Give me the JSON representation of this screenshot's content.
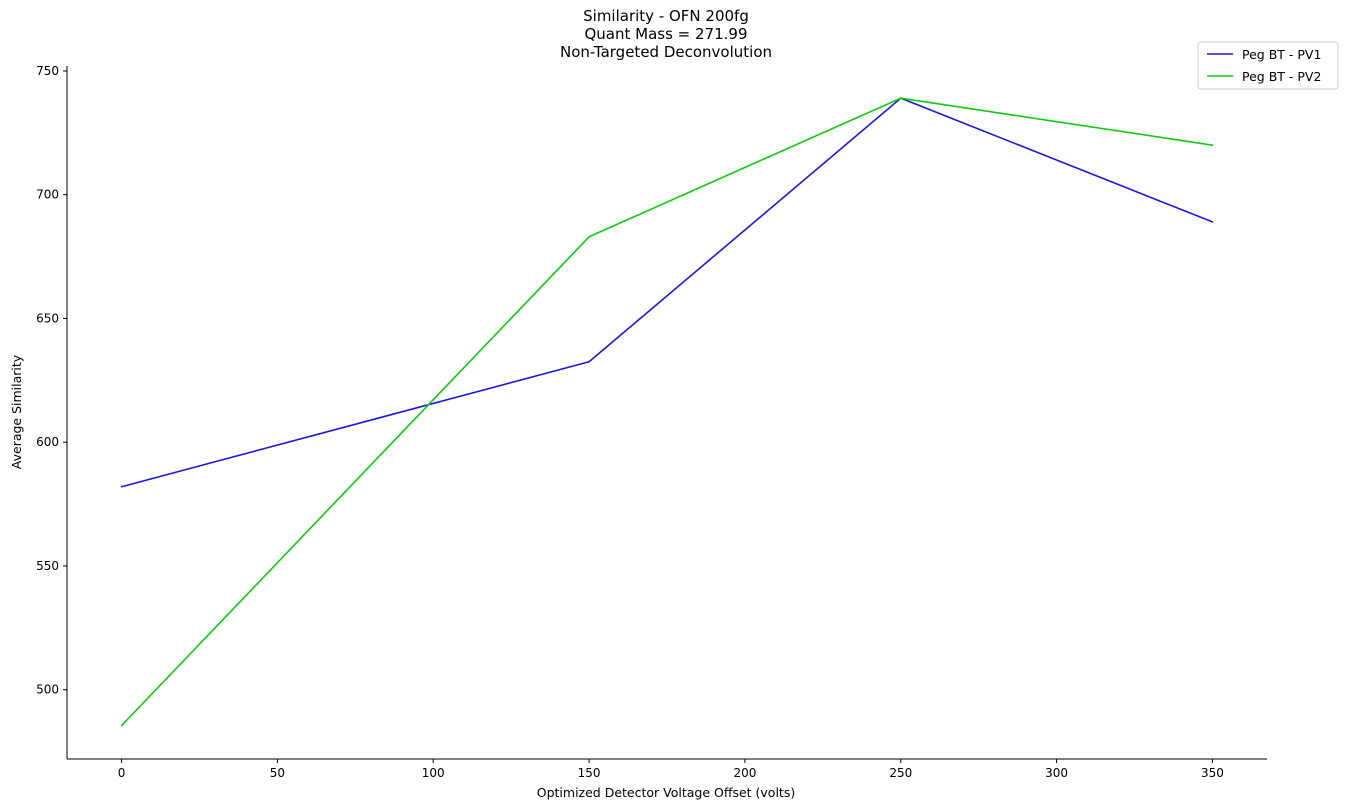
{
  "chart_data": {
    "type": "line",
    "title_lines": [
      "Similarity - OFN 200fg",
      "Quant Mass = 271.99",
      "Non-Targeted Deconvolution"
    ],
    "xlabel": "Optimized Detector Voltage Offset (volts)",
    "ylabel": "Average Similarity",
    "x": [
      0,
      150,
      250,
      350
    ],
    "xlim": [
      -17.5,
      367.5
    ],
    "ylim": [
      472,
      752
    ],
    "xticks": [
      0,
      50,
      100,
      150,
      200,
      250,
      300,
      350
    ],
    "yticks": [
      500,
      550,
      600,
      650,
      700,
      750
    ],
    "grid": false,
    "legend_position": "top-right",
    "series": [
      {
        "name": "Peg BT - PV1",
        "color": "#1a1adc",
        "values": [
          582,
          632.5,
          739,
          689
        ]
      },
      {
        "name": "Peg BT - PV2",
        "color": "#11c911",
        "values": [
          485.5,
          683,
          739,
          720
        ]
      }
    ]
  }
}
